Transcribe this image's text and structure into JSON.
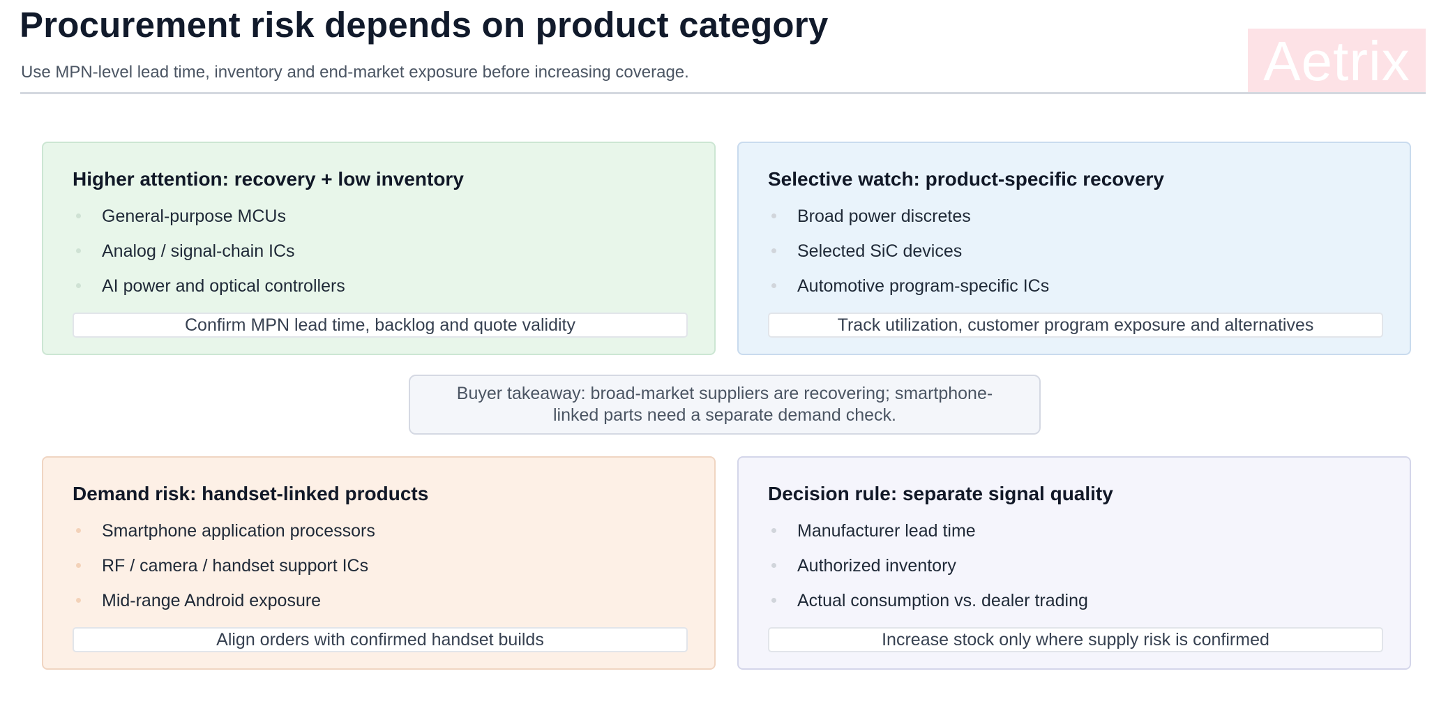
{
  "header": {
    "title": "Procurement risk depends on product category",
    "subtitle": "Use MPN-level lead time, inventory and end-market exposure before increasing coverage.",
    "logo_text": "Aetrix"
  },
  "cards": [
    {
      "title": "Higher attention: recovery + low inventory",
      "items": [
        "General-purpose MCUs",
        "Analog / signal-chain ICs",
        "AI power and optical controllers"
      ],
      "note": "Confirm MPN lead time, backlog and quote validity",
      "color": "#e8f6ea"
    },
    {
      "title": "Selective watch: product-specific recovery",
      "items": [
        "Broad power discretes",
        "Selected SiC devices",
        "Automotive program-specific ICs"
      ],
      "note": "Track utilization, customer program exposure and alternatives",
      "color": "#e9f3fb"
    },
    {
      "title": "Demand risk: handset-linked products",
      "items": [
        "Smartphone application processors",
        "RF / camera / handset support ICs",
        "Mid-range Android exposure"
      ],
      "note": "Align orders with confirmed handset builds",
      "color": "#fdf0e6"
    },
    {
      "title": "Decision rule: separate signal quality",
      "items": [
        "Manufacturer lead time",
        "Authorized inventory",
        "Actual consumption vs. dealer trading"
      ],
      "note": "Increase stock only where supply risk is confirmed",
      "color": "#f5f5fc"
    }
  ],
  "takeaway": {
    "text": "Buyer takeaway: broad-market suppliers are recovering; smartphone-linked parts need a separate demand check."
  }
}
